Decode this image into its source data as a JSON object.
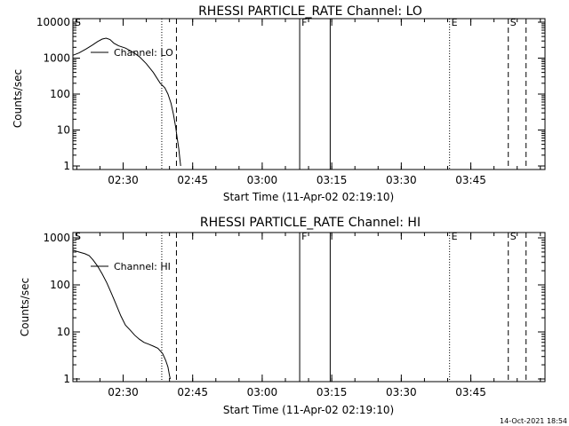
{
  "footer_timestamp": "14-Oct-2021 18:54",
  "colors": {
    "background": "#ffffff",
    "foreground": "#000000"
  },
  "chart_data": [
    {
      "type": "line",
      "title": "RHESSI PARTICLE_RATE Channel: LO",
      "xlabel": "Start Time (11-Apr-02 02:19:10)",
      "ylabel": "Counts/sec",
      "y_scale": "log",
      "grid": false,
      "xlim": [
        "02:19:10",
        "04:01:00"
      ],
      "ylim": [
        1,
        10000
      ],
      "x_ticks": [
        "02:30",
        "02:45",
        "03:00",
        "03:15",
        "03:30",
        "03:45"
      ],
      "y_ticks": [
        "1",
        "10",
        "100",
        "1000",
        "10000"
      ],
      "legend": {
        "entries": [
          "Channel: LO"
        ],
        "placement": "top-left"
      },
      "markers": [
        {
          "time": "02:19:10",
          "style": "solid",
          "label": "S"
        },
        {
          "time": "02:38:20",
          "style": "dotted",
          "label": ""
        },
        {
          "time": "02:41:30",
          "style": "dashed",
          "label": ""
        },
        {
          "time": "03:08:05",
          "style": "solid",
          "label": "F"
        },
        {
          "time": "03:14:40",
          "style": "solid",
          "label": ""
        },
        {
          "time": "03:40:25",
          "style": "dotted",
          "label": "E"
        },
        {
          "time": "03:53:05",
          "style": "dashed",
          "label": "S"
        },
        {
          "time": "03:56:55",
          "style": "dashed",
          "label": ""
        }
      ],
      "series": [
        {
          "name": "Channel: LO",
          "points": [
            [
              "02:19:10",
              1200
            ],
            [
              "02:20:30",
              1400
            ],
            [
              "02:22:00",
              1800
            ],
            [
              "02:23:20",
              2300
            ],
            [
              "02:24:30",
              2900
            ],
            [
              "02:25:30",
              3400
            ],
            [
              "02:26:20",
              3600
            ],
            [
              "02:27:10",
              3300
            ],
            [
              "02:28:00",
              2600
            ],
            [
              "02:29:00",
              2200
            ],
            [
              "02:30:30",
              1900
            ],
            [
              "02:32:00",
              1500
            ],
            [
              "02:33:30",
              1100
            ],
            [
              "02:35:00",
              700
            ],
            [
              "02:36:30",
              400
            ],
            [
              "02:38:00",
              200
            ],
            [
              "02:39:00",
              150
            ],
            [
              "02:39:40",
              100
            ],
            [
              "02:40:20",
              55
            ],
            [
              "02:40:50",
              28
            ],
            [
              "02:41:20",
              12
            ],
            [
              "02:41:40",
              6
            ],
            [
              "02:42:00",
              3
            ],
            [
              "02:42:15",
              1.5
            ],
            [
              "02:42:25",
              1
            ]
          ]
        }
      ]
    },
    {
      "type": "line",
      "title": "RHESSI PARTICLE_RATE Channel: HI",
      "xlabel": "Start Time (11-Apr-02 02:19:10)",
      "ylabel": "Counts/sec",
      "y_scale": "log",
      "grid": false,
      "xlim": [
        "02:19:10",
        "04:01:00"
      ],
      "ylim": [
        1,
        1000
      ],
      "x_ticks": [
        "02:30",
        "02:45",
        "03:00",
        "03:15",
        "03:30",
        "03:45"
      ],
      "y_ticks": [
        "1",
        "10",
        "100",
        "1000"
      ],
      "legend": {
        "entries": [
          "Channel: HI"
        ],
        "placement": "top-left"
      },
      "markers": [
        {
          "time": "02:19:10",
          "style": "solid",
          "label": "S"
        },
        {
          "time": "02:38:20",
          "style": "dotted",
          "label": ""
        },
        {
          "time": "02:41:30",
          "style": "dashed",
          "label": ""
        },
        {
          "time": "03:08:05",
          "style": "solid",
          "label": "F"
        },
        {
          "time": "03:14:40",
          "style": "solid",
          "label": ""
        },
        {
          "time": "03:40:25",
          "style": "dotted",
          "label": "E"
        },
        {
          "time": "03:53:05",
          "style": "dashed",
          "label": "S"
        },
        {
          "time": "03:56:55",
          "style": "dashed",
          "label": ""
        }
      ],
      "series": [
        {
          "name": "Channel: HI",
          "points": [
            [
              "02:19:10",
              550
            ],
            [
              "02:20:30",
              500
            ],
            [
              "02:21:45",
              460
            ],
            [
              "02:22:40",
              420
            ],
            [
              "02:23:30",
              340
            ],
            [
              "02:24:30",
              250
            ],
            [
              "02:25:30",
              170
            ],
            [
              "02:26:30",
              110
            ],
            [
              "02:27:30",
              65
            ],
            [
              "02:28:30",
              38
            ],
            [
              "02:29:30",
              22
            ],
            [
              "02:30:30",
              14
            ],
            [
              "02:31:30",
              11
            ],
            [
              "02:32:30",
              8.5
            ],
            [
              "02:33:30",
              7
            ],
            [
              "02:34:30",
              6
            ],
            [
              "02:35:30",
              5.5
            ],
            [
              "02:36:30",
              5
            ],
            [
              "02:37:30",
              4.5
            ],
            [
              "02:38:30",
              3.5
            ],
            [
              "02:39:10",
              2.5
            ],
            [
              "02:39:40",
              1.8
            ],
            [
              "02:40:00",
              1.2
            ],
            [
              "02:40:10",
              1
            ]
          ]
        }
      ]
    }
  ]
}
